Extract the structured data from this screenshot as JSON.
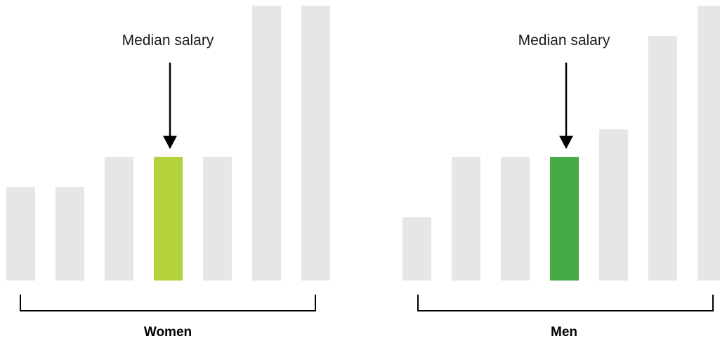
{
  "chart_data": [
    {
      "type": "bar",
      "group_label": "Women",
      "annotation": "Median salary",
      "highlight_index": 3,
      "values": [
        34,
        34,
        45,
        45,
        45,
        100,
        100
      ],
      "ylim": [
        0,
        100
      ],
      "colors": {
        "bar": "#e6e6e6",
        "highlight": "#b4d23c"
      }
    },
    {
      "type": "bar",
      "group_label": "Men",
      "annotation": "Median salary",
      "highlight_index": 3,
      "values": [
        23,
        45,
        45,
        45,
        55,
        89,
        100
      ],
      "ylim": [
        0,
        100
      ],
      "colors": {
        "bar": "#e6e6e6",
        "highlight": "#46aa46"
      }
    }
  ]
}
